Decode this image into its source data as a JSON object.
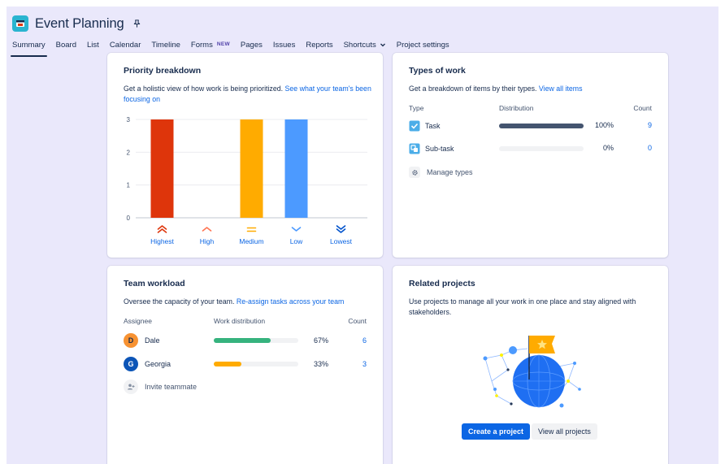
{
  "header": {
    "title": "Event Planning",
    "tabs": [
      {
        "label": "Summary",
        "active": true
      },
      {
        "label": "Board"
      },
      {
        "label": "List"
      },
      {
        "label": "Calendar"
      },
      {
        "label": "Timeline"
      },
      {
        "label": "Forms",
        "badge": "NEW"
      },
      {
        "label": "Pages"
      },
      {
        "label": "Issues"
      },
      {
        "label": "Reports"
      },
      {
        "label": "Shortcuts"
      },
      {
        "label": "Project settings"
      }
    ]
  },
  "priority": {
    "title": "Priority breakdown",
    "desc_text": "Get a holistic view of how work is being prioritized.",
    "desc_link": "See what your team's been focusing on"
  },
  "chart_data": {
    "type": "bar",
    "categories": [
      "Highest",
      "High",
      "Medium",
      "Low",
      "Lowest"
    ],
    "values": [
      3,
      0,
      3,
      3,
      0
    ],
    "colors": [
      "#de350b",
      "#ff7452",
      "#ffab00",
      "#4c9aff",
      "#0052cc"
    ],
    "yticks": [
      0,
      1,
      2,
      3
    ],
    "ylim": [
      0,
      3
    ],
    "grid": true
  },
  "types": {
    "title": "Types of work",
    "desc_text": "Get a breakdown of items by their types.",
    "desc_link": "View all items",
    "col_type": "Type",
    "col_dist": "Distribution",
    "col_count": "Count",
    "rows": [
      {
        "name": "Task",
        "pct_text": "100%",
        "fraction": 1.0,
        "count": "9",
        "icon": "task-checkbox-icon",
        "color": "#44546f"
      },
      {
        "name": "Sub-task",
        "pct_text": "0%",
        "fraction": 0.0,
        "count": "0",
        "icon": "subtask-icon",
        "color": "#44546f"
      }
    ],
    "manage": "Manage types"
  },
  "team": {
    "title": "Team workload",
    "desc_text": "Oversee the capacity of your team.",
    "desc_link": "Re-assign tasks across your team",
    "col_assignee": "Assignee",
    "col_dist": "Work distribution",
    "col_count": "Count",
    "rows": [
      {
        "initial": "D",
        "name": "Dale",
        "pct_text": "67%",
        "fraction": 0.67,
        "count": "6",
        "avatar_bg": "#f79232",
        "avatar_fg": "#172b4d",
        "bar": "#36b37e"
      },
      {
        "initial": "G",
        "name": "Georgia",
        "pct_text": "33%",
        "fraction": 0.33,
        "count": "3",
        "avatar_bg": "#0c55b7",
        "avatar_fg": "#ffffff",
        "bar": "#ffab00"
      }
    ],
    "invite": "Invite teammate"
  },
  "related": {
    "title": "Related projects",
    "desc": "Use projects to manage all your work in one place and stay aligned with stakeholders.",
    "create": "Create a project",
    "view_all": "View all projects"
  }
}
